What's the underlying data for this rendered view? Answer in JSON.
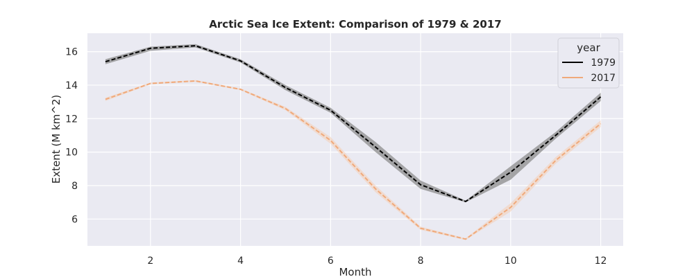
{
  "chart_data": {
    "type": "line",
    "title": "Arctic Sea Ice Extent: Comparison of 1979 & 2017",
    "xlabel": "Month",
    "ylabel": "Extent (M km^2)",
    "xlim": [
      0.6,
      12.5
    ],
    "ylim": [
      4.4,
      17.1
    ],
    "xticks": [
      2,
      4,
      6,
      8,
      10,
      12
    ],
    "yticks": [
      6,
      8,
      10,
      12,
      14,
      16
    ],
    "grid": true,
    "legend": {
      "title": "year",
      "placement": "top-right"
    },
    "x": [
      1,
      2,
      3,
      4,
      5,
      6,
      7,
      8,
      9,
      10,
      11,
      12
    ],
    "series": [
      {
        "name": "1979",
        "color": "#000000",
        "band_color": "#8c8c8c",
        "values": [
          15.4,
          16.2,
          16.35,
          15.45,
          13.85,
          12.5,
          10.3,
          8.05,
          7.05,
          8.8,
          11.0,
          13.3
        ],
        "lower": [
          15.25,
          16.05,
          16.25,
          15.35,
          13.7,
          12.35,
          10.0,
          7.8,
          7.0,
          8.35,
          10.8,
          13.05
        ],
        "upper": [
          15.55,
          16.3,
          16.45,
          15.55,
          14.0,
          12.65,
          10.6,
          8.3,
          7.1,
          9.15,
          11.2,
          13.55
        ]
      },
      {
        "name": "2017",
        "color": "#f0a97a",
        "band_color": "#f4cdb4",
        "values": [
          13.15,
          14.1,
          14.25,
          13.75,
          12.6,
          10.7,
          7.8,
          5.45,
          4.8,
          6.7,
          9.5,
          11.7
        ],
        "lower": [
          13.05,
          14.05,
          14.2,
          13.7,
          12.5,
          10.5,
          7.6,
          5.35,
          4.75,
          6.45,
          9.3,
          11.5
        ],
        "upper": [
          13.25,
          14.15,
          14.3,
          13.8,
          12.7,
          10.9,
          8.0,
          5.55,
          4.85,
          6.95,
          9.7,
          11.9
        ]
      }
    ]
  }
}
